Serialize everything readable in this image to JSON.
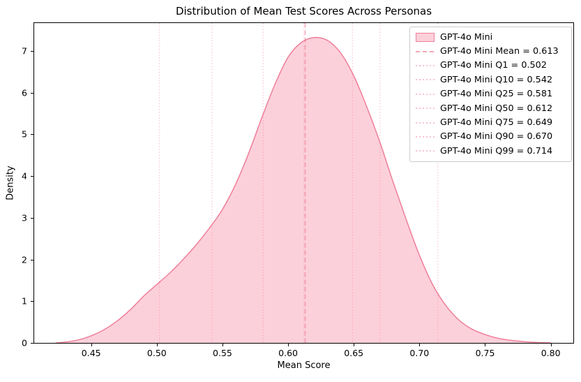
{
  "chart_data": {
    "type": "area",
    "subtype": "kde-density",
    "title": "Distribution of Mean Test Scores Across Personas",
    "xlabel": "Mean Score",
    "ylabel": "Density",
    "xlim": [
      0.4066,
      0.8172
    ],
    "ylim": [
      0,
      7.667
    ],
    "grid": false,
    "legend_position": "upper right",
    "x_tick_labels": [
      "0.45",
      "0.50",
      "0.55",
      "0.60",
      "0.65",
      "0.70",
      "0.75",
      "0.80"
    ],
    "x_ticks": [
      0.45,
      0.5,
      0.55,
      0.6,
      0.65,
      0.7,
      0.75,
      0.8
    ],
    "y_tick_labels": [
      "0",
      "1",
      "2",
      "3",
      "4",
      "5",
      "6",
      "7"
    ],
    "y_ticks": [
      0,
      1,
      2,
      3,
      4,
      5,
      6,
      7
    ],
    "series": [
      {
        "name": "GPT-4o Mini",
        "line_color": "#ee7f99",
        "fill_color": "#fcd0da",
        "mean": 0.613,
        "quantiles": {
          "Q1": 0.502,
          "Q10": 0.542,
          "Q25": 0.581,
          "Q50": 0.612,
          "Q75": 0.649,
          "Q90": 0.67,
          "Q99": 0.714
        },
        "x": [
          0.423,
          0.43,
          0.44,
          0.45,
          0.46,
          0.47,
          0.48,
          0.49,
          0.5,
          0.51,
          0.52,
          0.53,
          0.54,
          0.55,
          0.56,
          0.57,
          0.58,
          0.59,
          0.6,
          0.61,
          0.62,
          0.63,
          0.64,
          0.65,
          0.66,
          0.67,
          0.68,
          0.69,
          0.7,
          0.71,
          0.72,
          0.73,
          0.74,
          0.75,
          0.76,
          0.77,
          0.78,
          0.79,
          0.8
        ],
        "density": [
          0.0,
          0.02,
          0.07,
          0.17,
          0.32,
          0.53,
          0.8,
          1.12,
          1.4,
          1.68,
          2.0,
          2.35,
          2.75,
          3.2,
          3.8,
          4.55,
          5.4,
          6.2,
          6.85,
          7.2,
          7.32,
          7.25,
          6.95,
          6.4,
          5.65,
          4.8,
          3.85,
          2.95,
          2.1,
          1.4,
          0.9,
          0.55,
          0.33,
          0.2,
          0.11,
          0.06,
          0.03,
          0.01,
          0.0
        ]
      }
    ],
    "annotations": [
      {
        "label": "Mean",
        "value": 0.613,
        "style": "dashed"
      },
      {
        "label": "Q1",
        "value": 0.502,
        "style": "dotted"
      },
      {
        "label": "Q10",
        "value": 0.542,
        "style": "dotted"
      },
      {
        "label": "Q25",
        "value": 0.581,
        "style": "dotted"
      },
      {
        "label": "Q50",
        "value": 0.612,
        "style": "dotted"
      },
      {
        "label": "Q75",
        "value": 0.649,
        "style": "dotted"
      },
      {
        "label": "Q90",
        "value": 0.67,
        "style": "dotted"
      },
      {
        "label": "Q99",
        "value": 0.714,
        "style": "dotted"
      }
    ]
  },
  "legend": {
    "items": [
      {
        "label": "GPT-4o Mini",
        "swatch": "patch"
      },
      {
        "label": "GPT-4o Mini Mean = 0.613",
        "swatch": "dashed"
      },
      {
        "label": "GPT-4o Mini Q1 = 0.502",
        "swatch": "dotted"
      },
      {
        "label": "GPT-4o Mini Q10 = 0.542",
        "swatch": "dotted"
      },
      {
        "label": "GPT-4o Mini Q25 = 0.581",
        "swatch": "dotted"
      },
      {
        "label": "GPT-4o Mini Q50 = 0.612",
        "swatch": "dotted"
      },
      {
        "label": "GPT-4o Mini Q75 = 0.649",
        "swatch": "dotted"
      },
      {
        "label": "GPT-4o Mini Q90 = 0.670",
        "swatch": "dotted"
      },
      {
        "label": "GPT-4o Mini Q99 = 0.714",
        "swatch": "dotted"
      }
    ]
  },
  "colors": {
    "curve_line": "#ee7f99",
    "curve_fill": "#fcd0da",
    "mean_line": "rgba(233,116,143,0.60)",
    "quantile_line": "rgba(238,120,150,0.40)",
    "axis": "#000000",
    "legend_border": "#cccccc",
    "background": "#ffffff"
  }
}
